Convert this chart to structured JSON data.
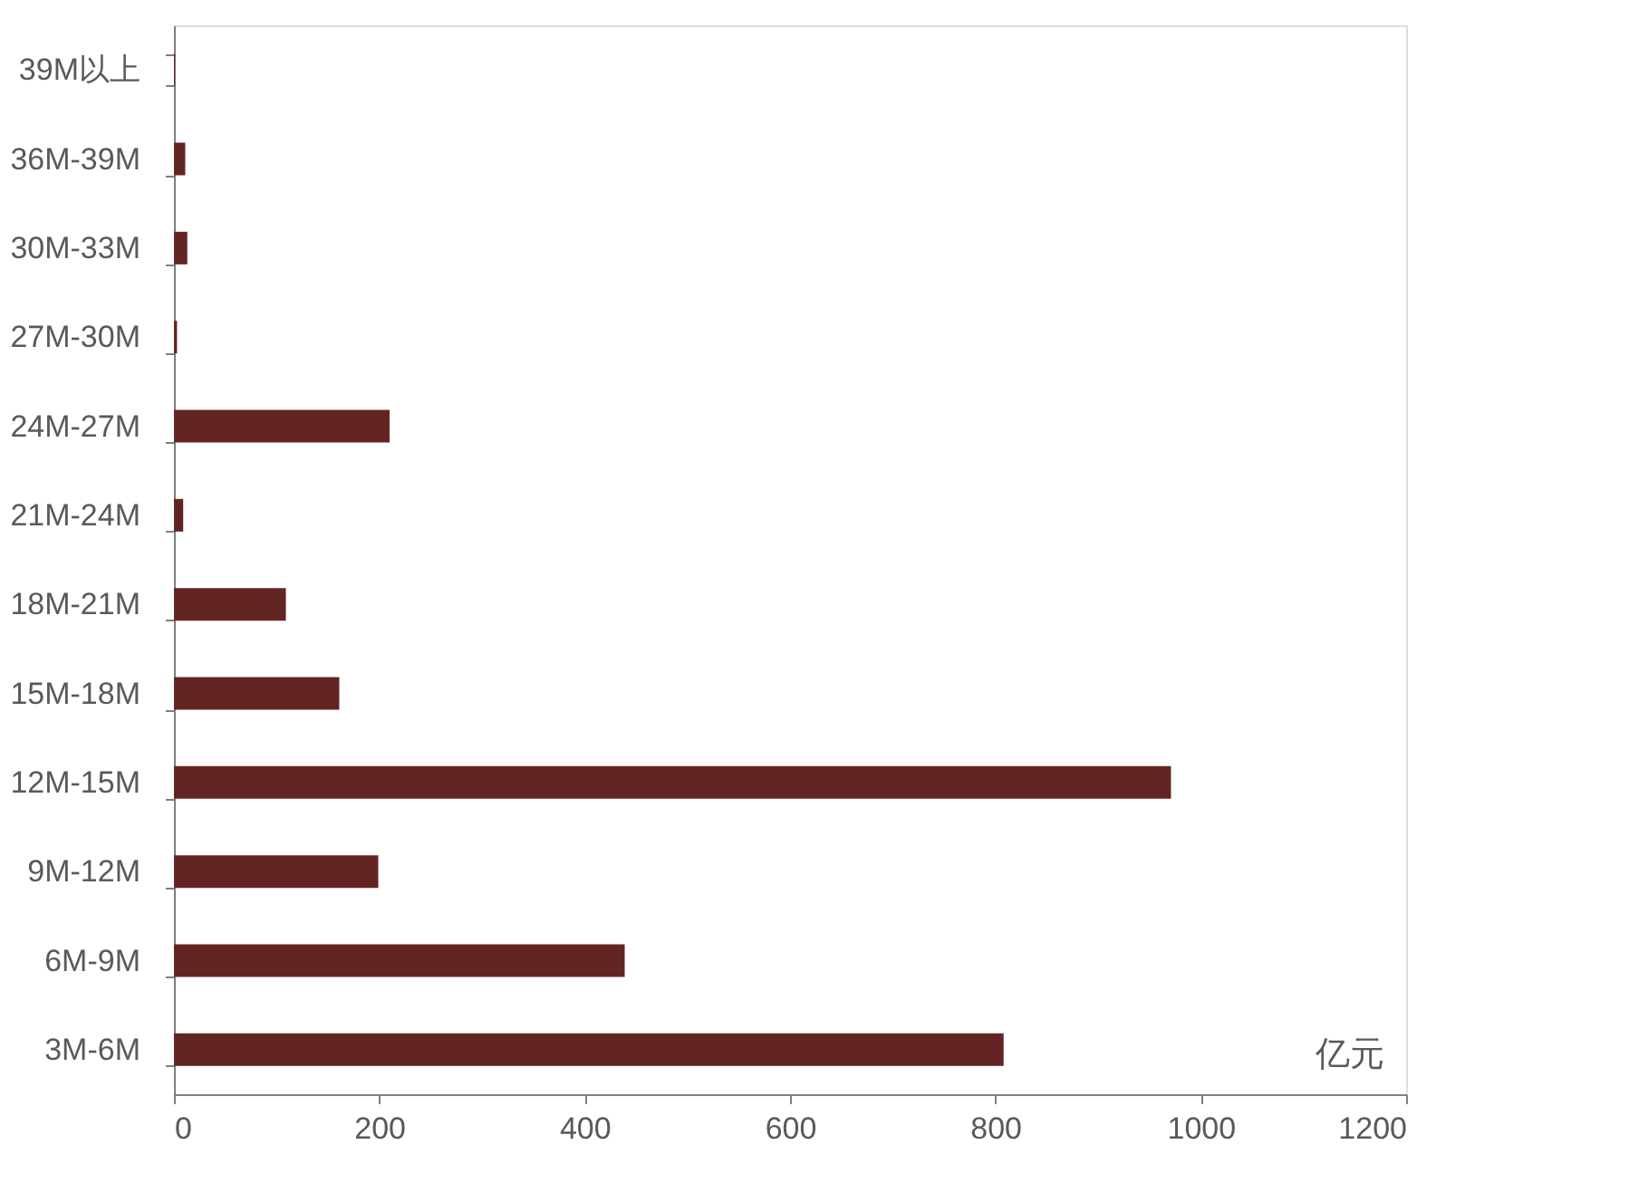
{
  "chart_data": {
    "type": "bar",
    "orientation": "horizontal",
    "categories": [
      "39M以上",
      "36M-39M",
      "30M-33M",
      "27M-30M",
      "24M-27M",
      "21M-24M",
      "18M-21M",
      "15M-18M",
      "12M-15M",
      "9M-12M",
      "6M-9M",
      "3M-6M"
    ],
    "values": [
      1,
      11,
      13,
      3,
      210,
      9,
      109,
      161,
      971,
      199,
      439,
      808
    ],
    "color": "#632523",
    "xlim": [
      0,
      1200
    ],
    "xticks": [
      0,
      200,
      400,
      600,
      800,
      1000,
      1200
    ],
    "grid": false,
    "annotations": [
      "亿元"
    ]
  }
}
